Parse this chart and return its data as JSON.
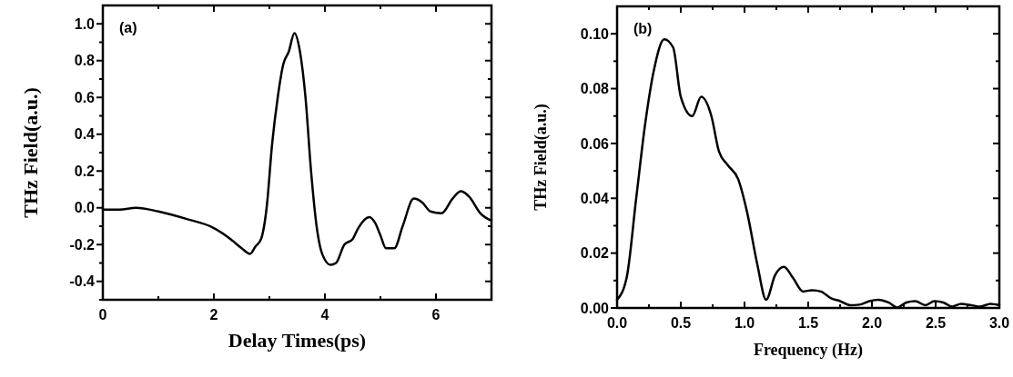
{
  "chart_data": [
    {
      "type": "line",
      "xlabel": "Delay Times(ps)",
      "ylabel": "THz Field(a.u.)",
      "annotations": [
        "(a)"
      ],
      "xlim": [
        0,
        7
      ],
      "ylim": [
        -0.5,
        1.1
      ],
      "xticks": [
        0,
        {
          "value": 1,
          "label": null
        },
        2,
        {
          "value": 3,
          "label": null
        },
        4,
        {
          "value": 5,
          "label": null
        },
        6,
        {
          "value": 7,
          "label": null
        }
      ],
      "yticks": [
        {
          "value": -0.5,
          "label": null
        },
        -0.4,
        {
          "value": -0.3,
          "label": null
        },
        -0.2,
        {
          "value": -0.1,
          "label": null
        },
        {
          "value": 0,
          "label": "0.0"
        },
        {
          "value": 0.1,
          "label": null
        },
        0.2,
        {
          "value": 0.3,
          "label": null
        },
        0.4,
        {
          "value": 0.5,
          "label": null
        },
        0.6,
        {
          "value": 0.7,
          "label": null
        },
        0.8,
        {
          "value": 0.9,
          "label": null
        },
        {
          "value": 1,
          "label": "1.0"
        }
      ],
      "series": [
        {
          "color": "#000000",
          "x": [
            0,
            0.3,
            0.6,
            1.0,
            1.5,
            2.0,
            2.3,
            2.5,
            2.65,
            2.75,
            2.85,
            2.95,
            3.05,
            3.15,
            3.25,
            3.35,
            3.45,
            3.55,
            3.65,
            3.75,
            3.85,
            3.95,
            4.1,
            4.2,
            4.35,
            4.5,
            4.6,
            4.8,
            4.9,
            5.0,
            5.1,
            5.25,
            5.4,
            5.6,
            5.75,
            5.9,
            6.1,
            6.3,
            6.45,
            6.6,
            6.8,
            7.0
          ],
          "values": [
            -0.01,
            -0.01,
            0.0,
            -0.02,
            -0.06,
            -0.11,
            -0.17,
            -0.22,
            -0.25,
            -0.21,
            -0.17,
            0.0,
            0.35,
            0.6,
            0.78,
            0.85,
            0.95,
            0.85,
            0.6,
            0.2,
            -0.1,
            -0.25,
            -0.31,
            -0.3,
            -0.2,
            -0.17,
            -0.11,
            -0.05,
            -0.08,
            -0.15,
            -0.22,
            -0.22,
            -0.1,
            0.05,
            0.03,
            -0.02,
            -0.03,
            0.05,
            0.09,
            0.06,
            -0.03,
            -0.07
          ]
        }
      ]
    },
    {
      "type": "line",
      "xlabel": "Frequency (Hz)",
      "ylabel": "THz Field(a.u.)",
      "annotations": [
        "(b)"
      ],
      "xlim": [
        0,
        3.0
      ],
      "ylim": [
        0,
        0.11
      ],
      "xticks": [
        {
          "value": 0,
          "label": "0.0"
        },
        {
          "value": 0.25,
          "label": null
        },
        0.5,
        {
          "value": 0.75,
          "label": null
        },
        {
          "value": 1,
          "label": "1.0"
        },
        {
          "value": 1.25,
          "label": null
        },
        1.5,
        {
          "value": 1.75,
          "label": null
        },
        {
          "value": 2,
          "label": "2.0"
        },
        {
          "value": 2.25,
          "label": null
        },
        2.5,
        {
          "value": 2.75,
          "label": null
        },
        {
          "value": 3,
          "label": "3.0"
        }
      ],
      "yticks": [
        {
          "value": 0,
          "label": "0.00"
        },
        {
          "value": 0.01,
          "label": null
        },
        0.02,
        {
          "value": 0.03,
          "label": null
        },
        0.04,
        {
          "value": 0.05,
          "label": null
        },
        0.06,
        {
          "value": 0.07,
          "label": null
        },
        0.08,
        {
          "value": 0.09,
          "label": null
        },
        {
          "value": 0.1,
          "label": "0.10"
        }
      ],
      "series": [
        {
          "color": "#000000",
          "x": [
            0,
            0.075,
            0.15,
            0.22,
            0.29,
            0.37,
            0.44,
            0.5,
            0.59,
            0.66,
            0.74,
            0.8,
            0.87,
            0.95,
            1.02,
            1.1,
            1.17,
            1.24,
            1.31,
            1.38,
            1.46,
            1.53,
            1.6,
            1.68,
            1.75,
            1.83,
            1.9,
            1.98,
            2.05,
            2.13,
            2.2,
            2.27,
            2.34,
            2.42,
            2.49,
            2.56,
            2.63,
            2.7,
            2.78,
            2.85,
            2.93,
            3.0
          ],
          "values": [
            0.003,
            0.011,
            0.04,
            0.067,
            0.087,
            0.098,
            0.095,
            0.077,
            0.07,
            0.077,
            0.07,
            0.057,
            0.052,
            0.047,
            0.035,
            0.016,
            0.003,
            0.012,
            0.015,
            0.011,
            0.006,
            0.0065,
            0.006,
            0.0035,
            0.0025,
            0.001,
            0.0012,
            0.0025,
            0.003,
            0.002,
            0.0002,
            0.002,
            0.0025,
            0.001,
            0.0025,
            0.002,
            0.0005,
            0.0015,
            0.001,
            0.0005,
            0.0015,
            0.001
          ]
        }
      ]
    }
  ]
}
